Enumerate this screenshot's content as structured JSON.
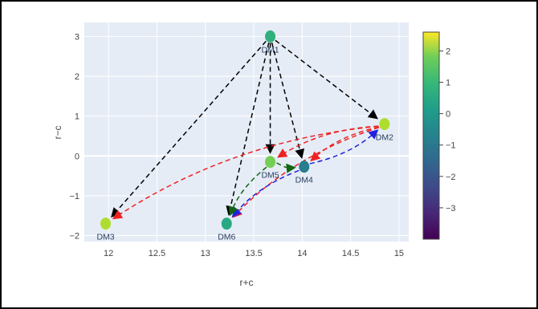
{
  "chart_data": {
    "type": "scatter",
    "xlabel": "r+c",
    "ylabel": "r−c",
    "xlim": [
      11.75,
      15.1
    ],
    "ylim": [
      -2.15,
      3.35
    ],
    "x_ticks": [
      "12",
      "12.5",
      "13",
      "13.5",
      "14",
      "14.5",
      "15"
    ],
    "x_tick_values": [
      12,
      12.5,
      13,
      13.5,
      14,
      14.5,
      15
    ],
    "y_ticks": [
      "−2",
      "−1",
      "0",
      "1",
      "2",
      "3"
    ],
    "y_tick_values": [
      -2,
      -1,
      0,
      1,
      2,
      3
    ],
    "grid": true,
    "points": [
      {
        "label": "DM1",
        "x": 13.67,
        "y": 3.0,
        "color_value": 0.2
      },
      {
        "label": "DM2",
        "x": 14.85,
        "y": 0.8,
        "color_value": 1.8
      },
      {
        "label": "DM3",
        "x": 11.97,
        "y": -1.7,
        "color_value": 1.8
      },
      {
        "label": "DM4",
        "x": 14.02,
        "y": -0.27,
        "color_value": -1.2
      },
      {
        "label": "DM5",
        "x": 13.67,
        "y": -0.15,
        "color_value": 1.2
      },
      {
        "label": "DM6",
        "x": 13.22,
        "y": -1.7,
        "color_value": 0.0
      }
    ],
    "edges": [
      {
        "from": "DM1",
        "to": "DM2",
        "color": "#000000"
      },
      {
        "from": "DM1",
        "to": "DM3",
        "color": "#000000"
      },
      {
        "from": "DM1",
        "to": "DM4",
        "color": "#000000"
      },
      {
        "from": "DM1",
        "to": "DM5",
        "color": "#000000"
      },
      {
        "from": "DM1",
        "to": "DM6",
        "color": "#000000"
      },
      {
        "from": "DM2",
        "to": "DM3",
        "color": "#ee2222"
      },
      {
        "from": "DM2",
        "to": "DM4",
        "color": "#ee2222"
      },
      {
        "from": "DM2",
        "to": "DM5",
        "color": "#ee2222"
      },
      {
        "from": "DM2",
        "to": "DM6",
        "color": "#ee2222"
      },
      {
        "from": "DM4",
        "to": "DM2",
        "color": "#2222dd"
      },
      {
        "from": "DM4",
        "to": "DM6",
        "color": "#2222dd"
      },
      {
        "from": "DM5",
        "to": "DM4",
        "color": "#116611"
      },
      {
        "from": "DM5",
        "to": "DM6",
        "color": "#116611"
      }
    ],
    "colorbar": {
      "min": -4.0,
      "max": 2.6,
      "ticks": [
        "2",
        "1",
        "0",
        "−1",
        "−2",
        "−3"
      ],
      "tick_values": [
        2,
        1,
        0,
        -1,
        -2,
        -3
      ],
      "colorscale": "viridis"
    }
  },
  "colors": {
    "plot_bg": "#e5ecf6",
    "grid": "#ffffff"
  }
}
